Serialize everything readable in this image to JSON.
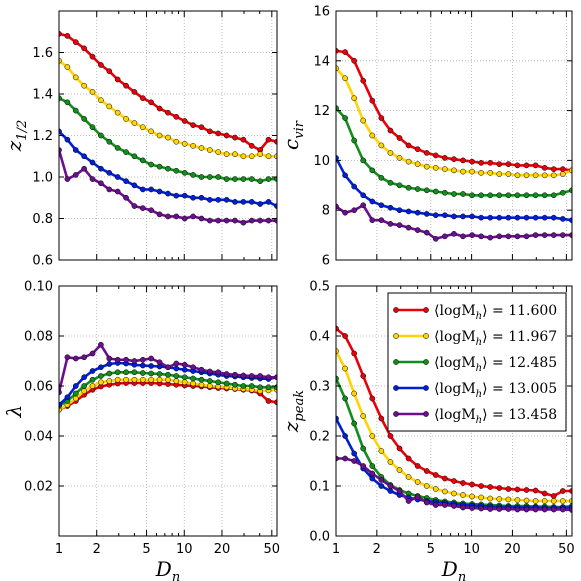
{
  "chart_data": [
    {
      "type": "line",
      "xscale": "log",
      "xlim": [
        1,
        55
      ],
      "ylim": [
        0.6,
        1.8
      ],
      "ylabel": "z1/2",
      "ylabel_main": "z",
      "ylabel_sub": "1/2",
      "xlabel": "",
      "yticks": [
        "0.6",
        "0.8",
        "1.0",
        "1.2",
        "1.4",
        "1.6"
      ],
      "ytick_values": [
        0.6,
        0.8,
        1.0,
        1.2,
        1.4,
        1.6
      ],
      "xtick_labels": [],
      "grid": true,
      "x": [
        1.0,
        1.167,
        1.361,
        1.587,
        1.852,
        2.16,
        2.52,
        2.94,
        3.43,
        4.0,
        4.67,
        5.44,
        6.35,
        7.41,
        8.64,
        10.08,
        11.76,
        13.72,
        16.0,
        18.67,
        21.78,
        25.4,
        29.64,
        34.58,
        40.34,
        47.06,
        54.9
      ],
      "series": [
        {
          "color": "#e8000b",
          "marker_fill": "#e8000b",
          "values": [
            1.69,
            1.68,
            1.65,
            1.62,
            1.58,
            1.54,
            1.51,
            1.47,
            1.44,
            1.41,
            1.38,
            1.36,
            1.33,
            1.31,
            1.29,
            1.27,
            1.25,
            1.24,
            1.22,
            1.21,
            1.2,
            1.19,
            1.18,
            1.15,
            1.13,
            1.18,
            1.17
          ]
        },
        {
          "color": "#ffd400",
          "marker_fill": "#ffd400",
          "values": [
            1.56,
            1.53,
            1.48,
            1.44,
            1.41,
            1.37,
            1.34,
            1.31,
            1.28,
            1.26,
            1.24,
            1.22,
            1.2,
            1.19,
            1.17,
            1.16,
            1.15,
            1.14,
            1.13,
            1.12,
            1.11,
            1.11,
            1.1,
            1.1,
            1.11,
            1.1,
            1.1
          ]
        },
        {
          "color": "#138d1c",
          "marker_fill": "#138d1c",
          "values": [
            1.38,
            1.36,
            1.32,
            1.28,
            1.24,
            1.2,
            1.17,
            1.14,
            1.12,
            1.1,
            1.08,
            1.06,
            1.05,
            1.04,
            1.03,
            1.02,
            1.01,
            1.0,
            1.0,
            1.0,
            0.99,
            0.99,
            0.99,
            0.99,
            0.98,
            0.99,
            0.99
          ]
        },
        {
          "color": "#0020d8",
          "marker_fill": "#0020d8",
          "values": [
            1.22,
            1.18,
            1.13,
            1.1,
            1.07,
            1.04,
            1.02,
            1.0,
            0.98,
            0.96,
            0.94,
            0.94,
            0.93,
            0.92,
            0.91,
            0.91,
            0.9,
            0.9,
            0.89,
            0.89,
            0.89,
            0.88,
            0.88,
            0.88,
            0.87,
            0.88,
            0.86
          ]
        },
        {
          "color": "#6b0f8f",
          "marker_fill": "#6b0f8f",
          "values": [
            1.13,
            0.99,
            1.01,
            1.04,
            0.99,
            0.97,
            0.94,
            0.93,
            0.9,
            0.86,
            0.85,
            0.84,
            0.82,
            0.81,
            0.81,
            0.8,
            0.81,
            0.8,
            0.79,
            0.79,
            0.79,
            0.79,
            0.78,
            0.79,
            0.79,
            0.79,
            0.79
          ]
        }
      ]
    },
    {
      "type": "line",
      "xscale": "log",
      "xlim": [
        1,
        55
      ],
      "ylim": [
        6,
        16
      ],
      "ylabel": "cvir",
      "ylabel_main": "c",
      "ylabel_sub": "vir",
      "xlabel": "",
      "yticks": [
        "6",
        "8",
        "10",
        "12",
        "14",
        "16"
      ],
      "ytick_values": [
        6,
        8,
        10,
        12,
        14,
        16
      ],
      "xtick_labels": [],
      "grid": true,
      "x": [
        1.0,
        1.167,
        1.361,
        1.587,
        1.852,
        2.16,
        2.52,
        2.94,
        3.43,
        4.0,
        4.67,
        5.44,
        6.35,
        7.41,
        8.64,
        10.08,
        11.76,
        13.72,
        16.0,
        18.67,
        21.78,
        25.4,
        29.64,
        34.58,
        40.34,
        47.06,
        54.9
      ],
      "series": [
        {
          "color": "#e8000b",
          "marker_fill": "#e8000b",
          "values": [
            14.4,
            14.35,
            14.0,
            13.2,
            12.4,
            11.7,
            11.2,
            10.9,
            10.6,
            10.45,
            10.3,
            10.2,
            10.1,
            10.05,
            10.0,
            9.95,
            9.9,
            9.9,
            9.85,
            9.85,
            9.8,
            9.8,
            9.8,
            9.7,
            9.65,
            9.65,
            9.6
          ]
        },
        {
          "color": "#ffd400",
          "marker_fill": "#ffd400",
          "values": [
            13.7,
            13.3,
            12.5,
            11.6,
            11.0,
            10.6,
            10.3,
            10.1,
            9.95,
            9.85,
            9.75,
            9.7,
            9.65,
            9.6,
            9.55,
            9.55,
            9.5,
            9.5,
            9.45,
            9.45,
            9.4,
            9.4,
            9.4,
            9.4,
            9.4,
            9.45,
            9.6
          ]
        },
        {
          "color": "#138d1c",
          "marker_fill": "#138d1c",
          "values": [
            12.1,
            11.7,
            10.8,
            10.0,
            9.6,
            9.3,
            9.1,
            9.0,
            8.9,
            8.85,
            8.8,
            8.75,
            8.7,
            8.65,
            8.65,
            8.6,
            8.6,
            8.6,
            8.6,
            8.6,
            8.6,
            8.6,
            8.6,
            8.6,
            8.6,
            8.7,
            8.8
          ]
        },
        {
          "color": "#0020d8",
          "marker_fill": "#0020d8",
          "values": [
            10.1,
            9.4,
            8.95,
            8.6,
            8.35,
            8.2,
            8.1,
            8.0,
            7.95,
            7.9,
            7.85,
            7.8,
            7.8,
            7.75,
            7.75,
            7.75,
            7.7,
            7.7,
            7.7,
            7.7,
            7.7,
            7.7,
            7.7,
            7.7,
            7.7,
            7.65,
            7.6
          ]
        },
        {
          "color": "#6b0f8f",
          "marker_fill": "#6b0f8f",
          "values": [
            8.15,
            7.9,
            8.0,
            8.2,
            7.6,
            7.6,
            7.45,
            7.4,
            7.3,
            7.2,
            7.1,
            6.85,
            6.95,
            7.05,
            6.95,
            7.0,
            6.95,
            6.9,
            6.95,
            6.95,
            6.95,
            6.95,
            7.0,
            7.0,
            7.0,
            7.0,
            7.0
          ]
        }
      ]
    },
    {
      "type": "line",
      "xscale": "log",
      "xlim": [
        1,
        55
      ],
      "ylim": [
        0.0,
        0.1
      ],
      "ylabel": "λ",
      "ylabel_main": "λ",
      "ylabel_sub": "",
      "xlabel": "Dn",
      "yticks": [
        "0.02",
        "0.04",
        "0.06",
        "0.08",
        "0.10"
      ],
      "ytick_values": [
        0.02,
        0.04,
        0.06,
        0.08,
        0.1
      ],
      "xtick_labels": [
        "1",
        "2",
        "5",
        "10",
        "20",
        "50"
      ],
      "xtick_values": [
        1,
        2,
        5,
        10,
        20,
        50
      ],
      "grid": true,
      "x": [
        1.0,
        1.167,
        1.361,
        1.587,
        1.852,
        2.16,
        2.52,
        2.94,
        3.43,
        4.0,
        4.67,
        5.44,
        6.35,
        7.41,
        8.64,
        10.08,
        11.76,
        13.72,
        16.0,
        18.67,
        21.78,
        25.4,
        29.64,
        34.58,
        40.34,
        47.06,
        54.9
      ],
      "series": [
        {
          "color": "#e8000b",
          "marker_fill": "#e8000b",
          "values": [
            0.0505,
            0.052,
            0.054,
            0.0565,
            0.0585,
            0.0598,
            0.0605,
            0.061,
            0.0612,
            0.0612,
            0.0612,
            0.0612,
            0.061,
            0.0608,
            0.0605,
            0.0602,
            0.06,
            0.0598,
            0.0595,
            0.0592,
            0.059,
            0.0588,
            0.0585,
            0.0582,
            0.057,
            0.054,
            0.0535
          ]
        },
        {
          "color": "#ffd400",
          "marker_fill": "#ffd400",
          "values": [
            0.0505,
            0.0525,
            0.055,
            0.058,
            0.06,
            0.0615,
            0.062,
            0.0625,
            0.0625,
            0.0625,
            0.0625,
            0.0625,
            0.0625,
            0.0625,
            0.062,
            0.0615,
            0.061,
            0.0605,
            0.06,
            0.0598,
            0.0595,
            0.059,
            0.0588,
            0.0585,
            0.058,
            0.0582,
            0.0585
          ]
        },
        {
          "color": "#138d1c",
          "marker_fill": "#138d1c",
          "values": [
            0.052,
            0.054,
            0.057,
            0.06,
            0.0625,
            0.064,
            0.065,
            0.0655,
            0.0655,
            0.0655,
            0.0652,
            0.065,
            0.0648,
            0.0645,
            0.064,
            0.0635,
            0.063,
            0.0625,
            0.062,
            0.0615,
            0.061,
            0.0605,
            0.06,
            0.06,
            0.0595,
            0.0595,
            0.0595
          ]
        },
        {
          "color": "#0020d8",
          "marker_fill": "#0020d8",
          "values": [
            0.0525,
            0.0555,
            0.06,
            0.0635,
            0.066,
            0.0675,
            0.0688,
            0.0692,
            0.069,
            0.0685,
            0.0682,
            0.068,
            0.0678,
            0.0675,
            0.067,
            0.0665,
            0.066,
            0.0655,
            0.065,
            0.0645,
            0.064,
            0.0638,
            0.0635,
            0.0632,
            0.063,
            0.0628,
            0.0635
          ]
        },
        {
          "color": "#6b0f8f",
          "marker_fill": "#6b0f8f",
          "values": [
            0.0575,
            0.0715,
            0.071,
            0.0715,
            0.073,
            0.0765,
            0.071,
            0.0705,
            0.0705,
            0.07,
            0.0705,
            0.071,
            0.0695,
            0.0675,
            0.069,
            0.0685,
            0.0675,
            0.0665,
            0.0658,
            0.0655,
            0.0648,
            0.0645,
            0.0642,
            0.064,
            0.064,
            0.0635,
            0.0635
          ]
        }
      ]
    },
    {
      "type": "line",
      "xscale": "log",
      "xlim": [
        1,
        55
      ],
      "ylim": [
        0.0,
        0.5
      ],
      "ylabel": "zpeak",
      "ylabel_main": "z",
      "ylabel_sub": "peak",
      "xlabel": "Dn",
      "yticks": [
        "0.0",
        "0.1",
        "0.2",
        "0.3",
        "0.4",
        "0.5"
      ],
      "ytick_values": [
        0.0,
        0.1,
        0.2,
        0.3,
        0.4,
        0.5
      ],
      "xtick_labels": [
        "1",
        "2",
        "5",
        "10",
        "20",
        "50"
      ],
      "xtick_values": [
        1,
        2,
        5,
        10,
        20,
        50
      ],
      "grid": true,
      "legend": {
        "placement": "top-right",
        "entries": [
          {
            "prefix": "⟨logM",
            "sub": "h",
            "suffix": "⟩ = 11.600",
            "color": "#e8000b"
          },
          {
            "prefix": "⟨logM",
            "sub": "h",
            "suffix": "⟩ = 11.967",
            "color": "#ffd400"
          },
          {
            "prefix": "⟨logM",
            "sub": "h",
            "suffix": "⟩ = 12.485",
            "color": "#138d1c"
          },
          {
            "prefix": "⟨logM",
            "sub": "h",
            "suffix": "⟩ = 13.005",
            "color": "#0020d8"
          },
          {
            "prefix": "⟨logM",
            "sub": "h",
            "suffix": "⟩ = 13.458",
            "color": "#6b0f8f"
          }
        ]
      },
      "x": [
        1.0,
        1.167,
        1.361,
        1.587,
        1.852,
        2.16,
        2.52,
        2.94,
        3.43,
        4.0,
        4.67,
        5.44,
        6.35,
        7.41,
        8.64,
        10.08,
        11.76,
        13.72,
        16.0,
        18.67,
        21.78,
        25.4,
        29.64,
        34.58,
        40.34,
        47.06,
        54.9
      ],
      "series": [
        {
          "color": "#e8000b",
          "marker_fill": "#e8000b",
          "values": [
            0.415,
            0.4,
            0.365,
            0.32,
            0.275,
            0.235,
            0.2,
            0.175,
            0.155,
            0.14,
            0.13,
            0.122,
            0.115,
            0.11,
            0.106,
            0.103,
            0.1,
            0.098,
            0.096,
            0.094,
            0.093,
            0.092,
            0.091,
            0.085,
            0.08,
            0.09,
            0.09
          ]
        },
        {
          "color": "#ffd400",
          "marker_fill": "#ffd400",
          "values": [
            0.37,
            0.335,
            0.285,
            0.24,
            0.2,
            0.17,
            0.148,
            0.132,
            0.118,
            0.108,
            0.1,
            0.094,
            0.089,
            0.085,
            0.082,
            0.079,
            0.077,
            0.075,
            0.074,
            0.073,
            0.072,
            0.071,
            0.07,
            0.07,
            0.07,
            0.07,
            0.07
          ]
        },
        {
          "color": "#138d1c",
          "marker_fill": "#138d1c",
          "values": [
            0.315,
            0.275,
            0.225,
            0.175,
            0.14,
            0.118,
            0.102,
            0.092,
            0.085,
            0.08,
            0.076,
            0.072,
            0.069,
            0.067,
            0.065,
            0.064,
            0.063,
            0.062,
            0.061,
            0.06,
            0.06,
            0.06,
            0.059,
            0.059,
            0.058,
            0.058,
            0.06
          ]
        },
        {
          "color": "#0020d8",
          "marker_fill": "#0020d8",
          "values": [
            0.235,
            0.2,
            0.165,
            0.135,
            0.115,
            0.1,
            0.09,
            0.082,
            0.077,
            0.073,
            0.07,
            0.068,
            0.066,
            0.064,
            0.062,
            0.061,
            0.06,
            0.059,
            0.058,
            0.058,
            0.057,
            0.057,
            0.057,
            0.056,
            0.056,
            0.057,
            0.057
          ]
        },
        {
          "color": "#6b0f8f",
          "marker_fill": "#6b0f8f",
          "values": [
            0.155,
            0.155,
            0.15,
            0.14,
            0.125,
            0.112,
            0.1,
            0.09,
            0.07,
            0.078,
            0.067,
            0.062,
            0.062,
            0.06,
            0.057,
            0.056,
            0.055,
            0.054,
            0.054,
            0.054,
            0.053,
            0.053,
            0.053,
            0.053,
            0.053,
            0.053,
            0.052
          ]
        }
      ]
    }
  ]
}
